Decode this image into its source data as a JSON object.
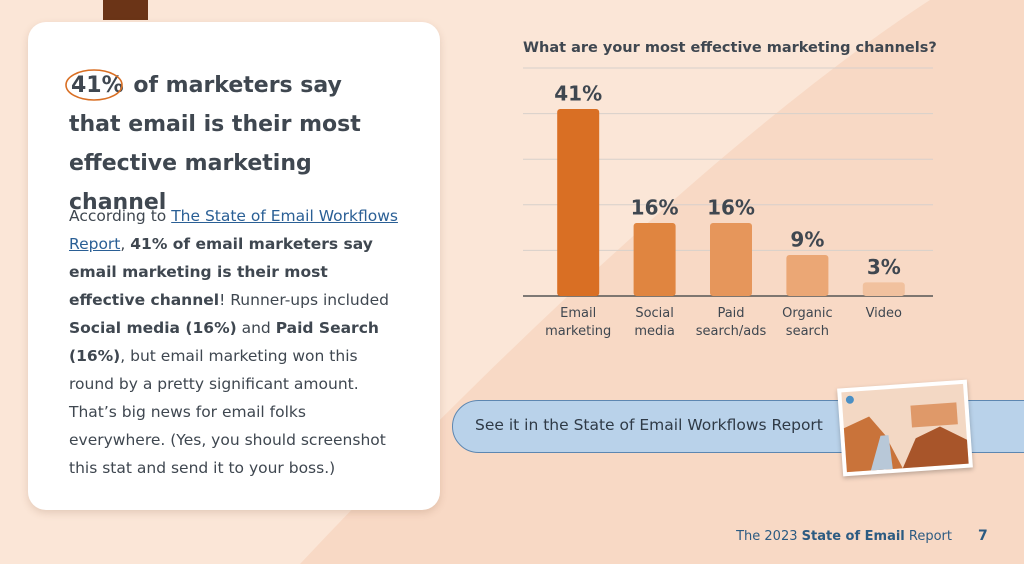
{
  "card": {
    "heading_highlight": "41%",
    "heading_rest": " of marketers say that email is their most effective marketing channel",
    "paragraph": [
      {
        "text": "According to ",
        "style": "normal"
      },
      {
        "text": "The State of Email Workflows Report",
        "style": "link"
      },
      {
        "text": ", ",
        "style": "normal"
      },
      {
        "text": "41% of email marketers say email marketing is their most effective channel",
        "style": "bold"
      },
      {
        "text": "! Runner-ups included ",
        "style": "normal"
      },
      {
        "text": "Social media (16%)",
        "style": "bold"
      },
      {
        "text": " and ",
        "style": "normal"
      },
      {
        "text": "Paid Search (16%)",
        "style": "bold"
      },
      {
        "text": ", but email marketing won this round by a pretty significant amount. That’s big news for email folks everywhere. (Yes, you should screenshot this stat and send it to your boss.)",
        "style": "normal"
      }
    ]
  },
  "chart_data": {
    "type": "bar",
    "title": "What are your most effective marketing channels?",
    "categories": [
      "Email marketing",
      "Social media",
      "Paid search/ads",
      "Organic search",
      "Video"
    ],
    "values": [
      41,
      16,
      16,
      9,
      3
    ],
    "value_labels": [
      "41%",
      "16%",
      "16%",
      "9%",
      "3%"
    ],
    "colors": [
      "#d96f24",
      "#e08540",
      "#e6965b",
      "#eba775",
      "#f1c19e"
    ],
    "ylim": [
      0,
      50
    ],
    "yticks": [
      0,
      10,
      20,
      30,
      40,
      50
    ],
    "grid": true
  },
  "button": {
    "label": "See it in the State of Email Workflows Report"
  },
  "footer": {
    "prefix": "The 2023 ",
    "bold": "State of Email",
    "suffix": " Report",
    "page": "7"
  }
}
